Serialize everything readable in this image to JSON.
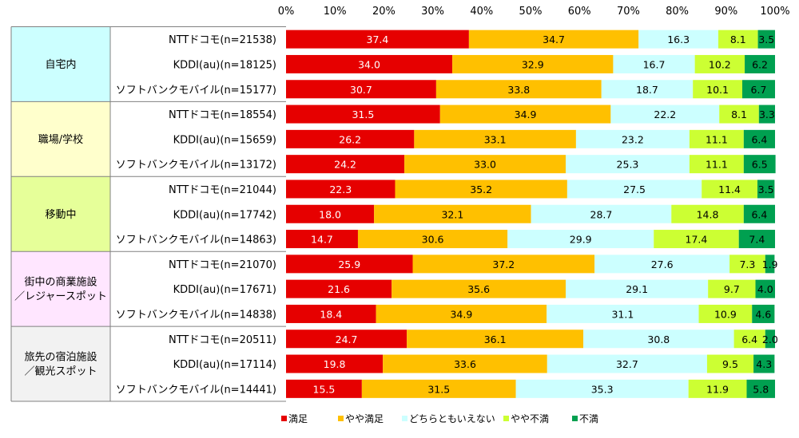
{
  "chart_data": {
    "type": "bar",
    "orientation": "horizontal",
    "stacked": true,
    "xlim": [
      0,
      100
    ],
    "x_ticks": [
      "0%",
      "10%",
      "20%",
      "30%",
      "40%",
      "50%",
      "60%",
      "70%",
      "80%",
      "90%",
      "100%"
    ],
    "groups": [
      {
        "label": "自宅内",
        "color": "#ccffff"
      },
      {
        "label": "職場/学校",
        "color": "#ffffcc"
      },
      {
        "label": "移動中",
        "color": "#e6ff99"
      },
      {
        "label": "街中の商業施設\n／レジャースポット",
        "color": "#ffe6ff"
      },
      {
        "label": "旅先の宿泊施設\n／観光スポット",
        "color": "#f2f2f2"
      }
    ],
    "categories": [
      "NTTドコモ(n=21538)",
      "KDDI(au)(n=18125)",
      "ソフトバンクモバイル(n=15177)",
      "NTTドコモ(n=18554)",
      "KDDI(au)(n=15659)",
      "ソフトバンクモバイル(n=13172)",
      "NTTドコモ(n=21044)",
      "KDDI(au)(n=17742)",
      "ソフトバンクモバイル(n=14863)",
      "NTTドコモ(n=21070)",
      "KDDI(au)(n=17671)",
      "ソフトバンクモバイル(n=14838)",
      "NTTドコモ(n=20511)",
      "KDDI(au)(n=17114)",
      "ソフトバンクモバイル(n=14441)"
    ],
    "series": [
      {
        "name": "満足",
        "color": "#e60000",
        "values": [
          37.4,
          34.0,
          30.7,
          31.5,
          26.2,
          24.2,
          22.3,
          18.0,
          14.7,
          25.9,
          21.6,
          18.4,
          24.7,
          19.8,
          15.5
        ]
      },
      {
        "name": "やや満足",
        "color": "#ffc000",
        "values": [
          34.7,
          32.9,
          33.8,
          34.9,
          33.1,
          33.0,
          35.2,
          32.1,
          30.6,
          37.2,
          35.6,
          34.9,
          36.1,
          33.6,
          31.5
        ]
      },
      {
        "name": "どちらともいえない",
        "color": "#ccffff",
        "values": [
          16.3,
          16.7,
          18.7,
          22.2,
          23.2,
          25.3,
          27.5,
          28.7,
          29.9,
          27.6,
          29.1,
          31.1,
          30.8,
          32.7,
          35.3
        ]
      },
      {
        "name": "やや不満",
        "color": "#ccff33",
        "values": [
          8.1,
          10.2,
          10.1,
          8.1,
          11.1,
          11.1,
          11.4,
          14.8,
          17.4,
          7.3,
          9.7,
          10.9,
          6.4,
          9.5,
          11.9
        ]
      },
      {
        "name": "不満",
        "color": "#00a050",
        "values": [
          3.5,
          6.2,
          6.7,
          3.3,
          6.4,
          6.5,
          3.5,
          6.4,
          7.4,
          1.9,
          4.0,
          4.6,
          2.0,
          4.3,
          5.8
        ]
      }
    ],
    "legend_position": "bottom",
    "grid": false
  }
}
